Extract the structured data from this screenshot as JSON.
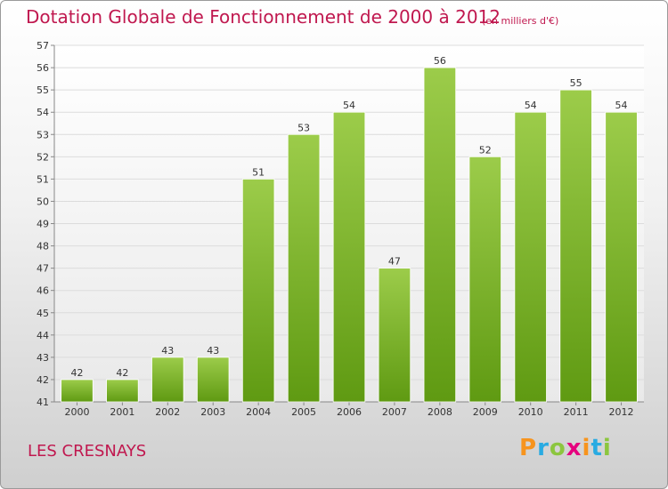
{
  "header": {
    "title": "Dotation Globale de Fonctionnement de 2000 à 2012",
    "subtitle": "(en milliers d'€)"
  },
  "footer": {
    "place": "LES CRESNAYS",
    "logo_letters": [
      "P",
      "r",
      "o",
      "x",
      "i",
      "t",
      "i"
    ],
    "logo_colors": [
      "#f7941d",
      "#29abe2",
      "#8cc63f",
      "#e6007e",
      "#f7941d",
      "#29abe2",
      "#8cc63f"
    ]
  },
  "chart_data": {
    "type": "bar",
    "categories": [
      "2000",
      "2001",
      "2002",
      "2003",
      "2004",
      "2005",
      "2006",
      "2007",
      "2008",
      "2009",
      "2010",
      "2011",
      "2012"
    ],
    "values": [
      42,
      42,
      43,
      43,
      51,
      53,
      54,
      47,
      56,
      52,
      54,
      55,
      54
    ],
    "title": "Dotation Globale de Fonctionnement de 2000 à 2012",
    "subtitle": "(en milliers d'€)",
    "xlabel": "",
    "ylabel": "",
    "ylim": [
      41,
      57
    ],
    "yticks": [
      41,
      42,
      43,
      44,
      45,
      46,
      47,
      48,
      49,
      50,
      51,
      52,
      53,
      54,
      55,
      56,
      57
    ],
    "grid": true,
    "bar_color_top": "#9ccc4a",
    "bar_color_bottom": "#5f9a12"
  }
}
